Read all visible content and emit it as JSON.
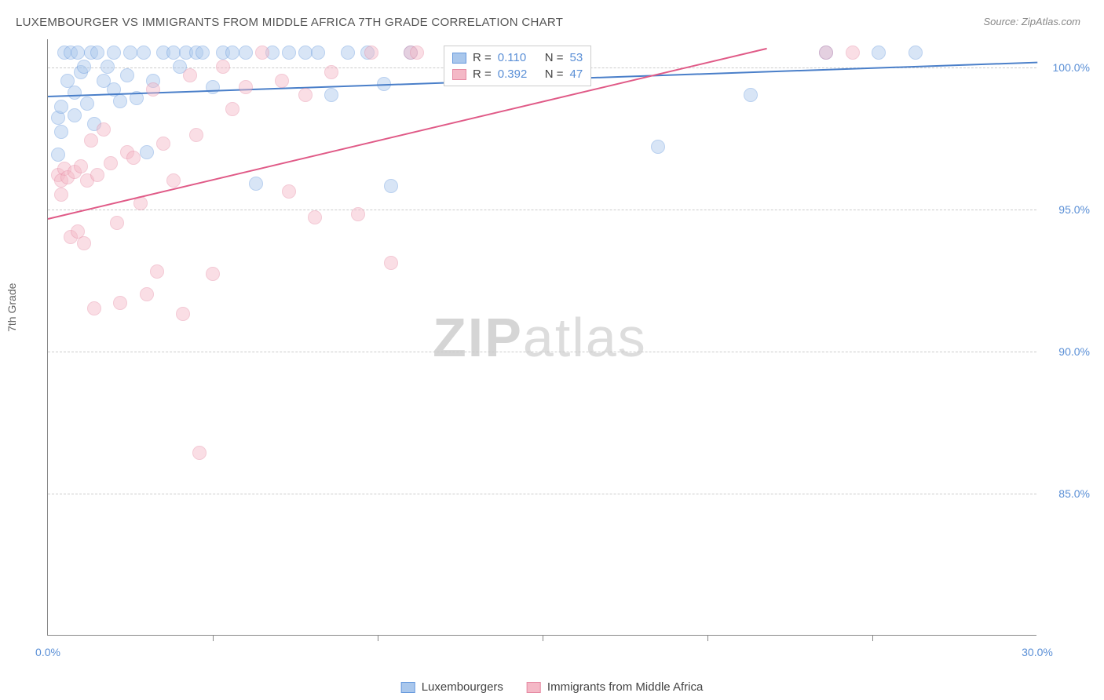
{
  "title": "LUXEMBOURGER VS IMMIGRANTS FROM MIDDLE AFRICA 7TH GRADE CORRELATION CHART",
  "source": "Source: ZipAtlas.com",
  "ylabel": "7th Grade",
  "watermark": {
    "bold": "ZIP",
    "rest": "atlas"
  },
  "chart": {
    "type": "scatter",
    "xlim": [
      0,
      30
    ],
    "ylim": [
      80,
      101
    ],
    "xtick_labels": [
      "0.0%",
      "30.0%"
    ],
    "xtick_positions": [
      0,
      30
    ],
    "xtick_minor": [
      5,
      10,
      15,
      20,
      25
    ],
    "ytick_labels": [
      "85.0%",
      "90.0%",
      "95.0%",
      "100.0%"
    ],
    "ytick_positions": [
      85,
      90,
      95,
      100
    ],
    "grid_color": "#cccccc",
    "background_color": "#ffffff",
    "axis_color": "#888888",
    "label_color": "#5a8fd6",
    "label_fontsize": 14,
    "marker_size": 18,
    "marker_opacity": 0.45,
    "series": [
      {
        "name": "Luxembourgers",
        "color_fill": "#a9c7ec",
        "color_border": "#6699dd",
        "R": "0.110",
        "N": "53",
        "trend": {
          "x1": 0,
          "y1": 99.0,
          "x2": 30,
          "y2": 100.2,
          "color": "#4a7fc9",
          "width": 2
        },
        "points": [
          [
            0.3,
            98.2
          ],
          [
            0.4,
            98.6
          ],
          [
            0.4,
            97.7
          ],
          [
            0.5,
            100.5
          ],
          [
            0.6,
            99.5
          ],
          [
            0.7,
            100.5
          ],
          [
            0.8,
            99.1
          ],
          [
            0.8,
            98.3
          ],
          [
            0.9,
            100.5
          ],
          [
            1.0,
            99.8
          ],
          [
            1.1,
            100.0
          ],
          [
            1.2,
            98.7
          ],
          [
            1.3,
            100.5
          ],
          [
            1.4,
            98.0
          ],
          [
            1.5,
            100.5
          ],
          [
            1.7,
            99.5
          ],
          [
            1.8,
            100.0
          ],
          [
            2.0,
            99.2
          ],
          [
            2.0,
            100.5
          ],
          [
            2.2,
            98.8
          ],
          [
            2.4,
            99.7
          ],
          [
            2.5,
            100.5
          ],
          [
            2.7,
            98.9
          ],
          [
            2.9,
            100.5
          ],
          [
            3.0,
            97.0
          ],
          [
            3.2,
            99.5
          ],
          [
            3.5,
            100.5
          ],
          [
            3.8,
            100.5
          ],
          [
            4.0,
            100.0
          ],
          [
            4.2,
            100.5
          ],
          [
            4.5,
            100.5
          ],
          [
            4.7,
            100.5
          ],
          [
            5.0,
            99.3
          ],
          [
            5.3,
            100.5
          ],
          [
            5.6,
            100.5
          ],
          [
            6.0,
            100.5
          ],
          [
            6.3,
            95.9
          ],
          [
            6.8,
            100.5
          ],
          [
            7.3,
            100.5
          ],
          [
            7.8,
            100.5
          ],
          [
            8.2,
            100.5
          ],
          [
            8.6,
            99.0
          ],
          [
            9.1,
            100.5
          ],
          [
            9.7,
            100.5
          ],
          [
            10.2,
            99.4
          ],
          [
            10.4,
            95.8
          ],
          [
            11.0,
            100.5
          ],
          [
            18.5,
            97.2
          ],
          [
            21.3,
            99.0
          ],
          [
            23.6,
            100.5
          ],
          [
            25.2,
            100.5
          ],
          [
            26.3,
            100.5
          ],
          [
            0.3,
            96.9
          ]
        ]
      },
      {
        "name": "Immigrants from Middle Africa",
        "color_fill": "#f4b8c6",
        "color_border": "#e68aa3",
        "R": "0.392",
        "N": "47",
        "trend": {
          "x1": 0,
          "y1": 94.7,
          "x2": 21.8,
          "y2": 100.7,
          "color": "#e05a87",
          "width": 2
        },
        "points": [
          [
            0.3,
            96.2
          ],
          [
            0.4,
            96.0
          ],
          [
            0.4,
            95.5
          ],
          [
            0.5,
            96.4
          ],
          [
            0.6,
            96.1
          ],
          [
            0.7,
            94.0
          ],
          [
            0.8,
            96.3
          ],
          [
            0.9,
            94.2
          ],
          [
            1.0,
            96.5
          ],
          [
            1.1,
            93.8
          ],
          [
            1.2,
            96.0
          ],
          [
            1.3,
            97.4
          ],
          [
            1.4,
            91.5
          ],
          [
            1.5,
            96.2
          ],
          [
            1.7,
            97.8
          ],
          [
            1.9,
            96.6
          ],
          [
            2.1,
            94.5
          ],
          [
            2.2,
            91.7
          ],
          [
            2.4,
            97.0
          ],
          [
            2.6,
            96.8
          ],
          [
            2.8,
            95.2
          ],
          [
            3.0,
            92.0
          ],
          [
            3.2,
            99.2
          ],
          [
            3.3,
            92.8
          ],
          [
            3.5,
            97.3
          ],
          [
            3.8,
            96.0
          ],
          [
            4.1,
            91.3
          ],
          [
            4.3,
            99.7
          ],
          [
            4.5,
            97.6
          ],
          [
            4.6,
            86.4
          ],
          [
            5.0,
            92.7
          ],
          [
            5.3,
            100.0
          ],
          [
            5.6,
            98.5
          ],
          [
            6.0,
            99.3
          ],
          [
            6.5,
            100.5
          ],
          [
            7.1,
            99.5
          ],
          [
            7.3,
            95.6
          ],
          [
            7.8,
            99.0
          ],
          [
            8.1,
            94.7
          ],
          [
            8.6,
            99.8
          ],
          [
            9.4,
            94.8
          ],
          [
            9.8,
            100.5
          ],
          [
            10.4,
            93.1
          ],
          [
            11.0,
            100.5
          ],
          [
            11.2,
            100.5
          ],
          [
            23.6,
            100.5
          ],
          [
            24.4,
            100.5
          ]
        ]
      }
    ]
  },
  "legend_bottom": [
    "Luxembourgers",
    "Immigrants from Middle Africa"
  ],
  "legend_top_labels": {
    "R": "R =",
    "N": "N ="
  }
}
